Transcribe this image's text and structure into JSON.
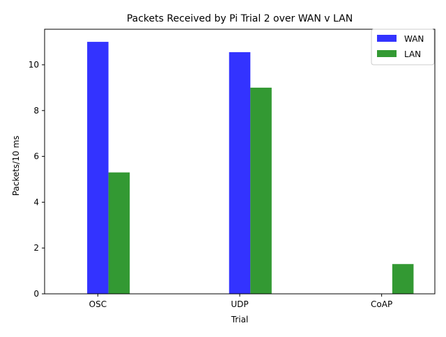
{
  "chart_data": {
    "type": "bar",
    "title": "Packets Received by Pi Trial 2 over WAN v LAN",
    "xlabel": "Trial",
    "ylabel": "Packets/10 ms",
    "categories": [
      "OSC",
      "UDP",
      "CoAP"
    ],
    "series": [
      {
        "name": "WAN",
        "color": "#0000ff",
        "values": [
          11.0,
          10.55,
          0
        ]
      },
      {
        "name": "LAN",
        "color": "#008000",
        "values": [
          5.3,
          9.0,
          1.3
        ]
      }
    ],
    "bar_opacity": 0.8,
    "ylim": [
      0,
      11.55
    ],
    "yticks": [
      0,
      2,
      4,
      6,
      8,
      10
    ],
    "grid": false,
    "legend_position": "top-right"
  }
}
